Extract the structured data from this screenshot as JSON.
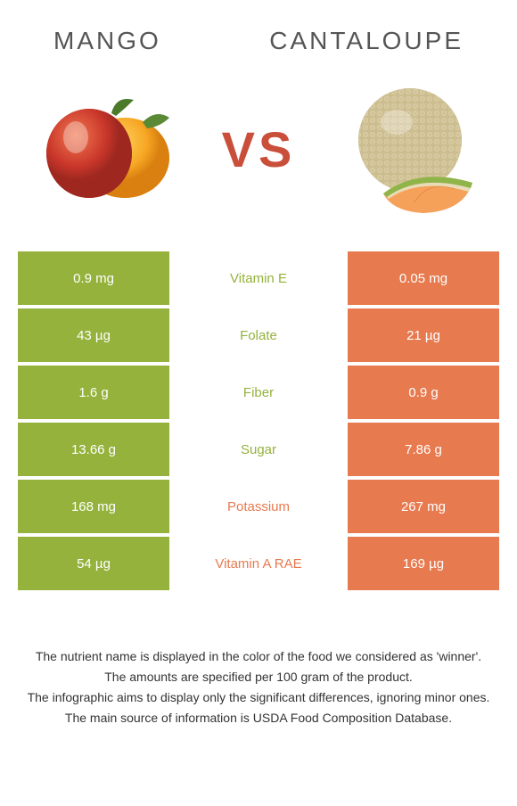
{
  "foods": {
    "left": {
      "name": "Mango",
      "color": "#94b23c"
    },
    "right": {
      "name": "Cantaloupe",
      "color": "#e77a4f"
    }
  },
  "vs_label": "VS",
  "vs_color": "#c94f3a",
  "table": {
    "left_bg": "#94b23c",
    "right_bg": "#e77a4f",
    "rows": [
      {
        "left": "0.9 mg",
        "nutrient": "Vitamin E",
        "right": "0.05 mg",
        "winner": "left"
      },
      {
        "left": "43 µg",
        "nutrient": "Folate",
        "right": "21 µg",
        "winner": "left"
      },
      {
        "left": "1.6 g",
        "nutrient": "Fiber",
        "right": "0.9 g",
        "winner": "left"
      },
      {
        "left": "13.66 g",
        "nutrient": "Sugar",
        "right": "7.86 g",
        "winner": "left"
      },
      {
        "left": "168 mg",
        "nutrient": "Potassium",
        "right": "267 mg",
        "winner": "right"
      },
      {
        "left": "54 µg",
        "nutrient": "Vitamin A RAE",
        "right": "169 µg",
        "winner": "right"
      }
    ]
  },
  "footer": {
    "line1": "The nutrient name is displayed in the color of the food we considered as 'winner'.",
    "line2": "The amounts are specified per 100 gram of the product.",
    "line3": "The infographic aims to display only the significant differences, ignoring minor ones.",
    "line4": "The main source of information is USDA Food Composition Database."
  }
}
